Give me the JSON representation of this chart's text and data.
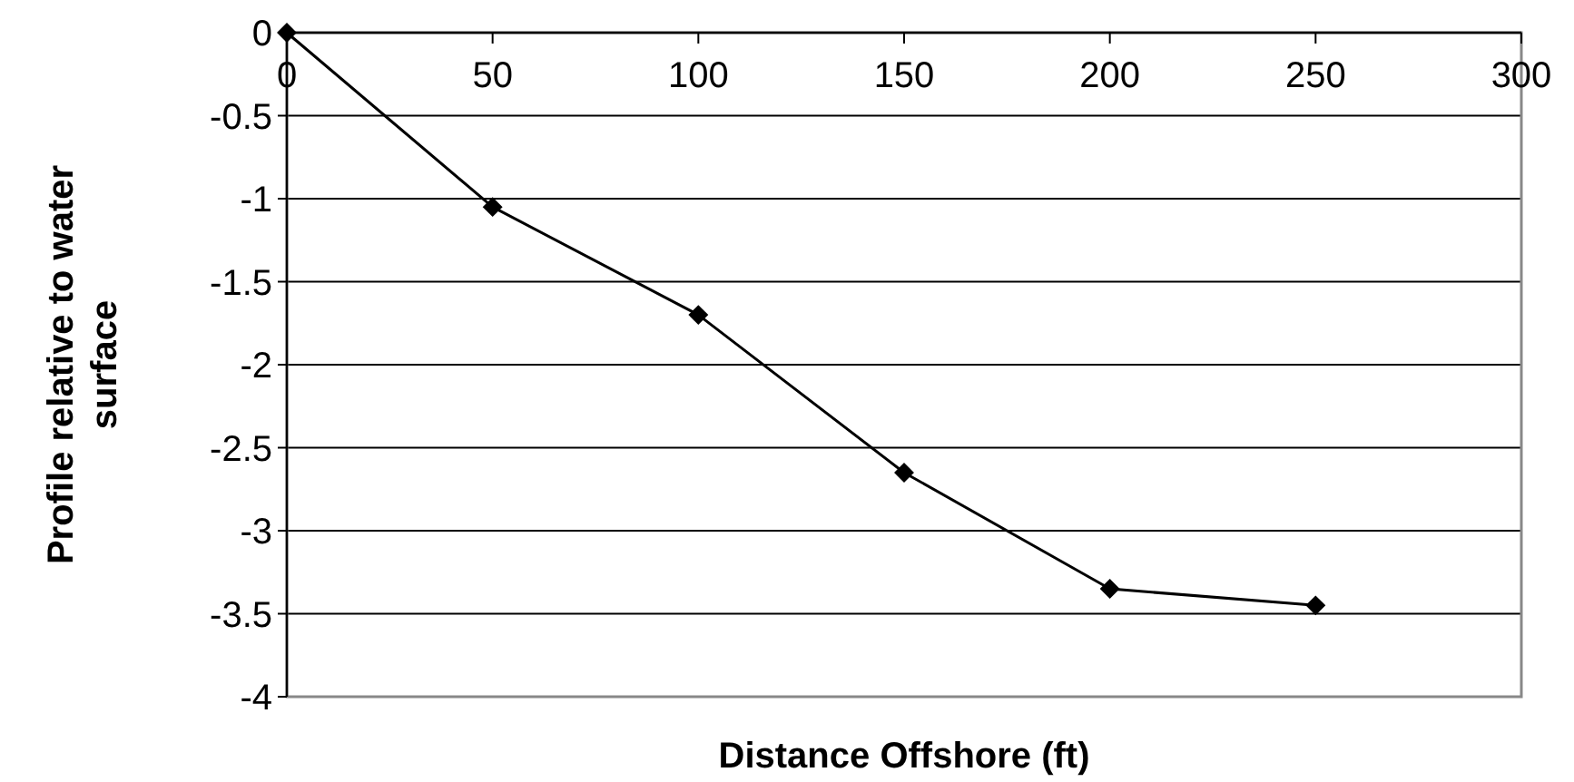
{
  "chart_data": {
    "type": "line",
    "xlabel": "Distance Offshore (ft)",
    "ylabel": "Profile relative to water surface",
    "x": [
      0,
      50,
      100,
      150,
      200,
      250
    ],
    "series": [
      {
        "color": "#000000",
        "values": [
          0,
          -1.05,
          -1.7,
          -2.65,
          -3.35,
          -3.45
        ]
      }
    ],
    "xlim": [
      0,
      300
    ],
    "xticks": [
      0,
      50,
      100,
      150,
      200,
      250,
      300
    ],
    "ylim": [
      -4,
      0
    ],
    "yticks": [
      0,
      -0.5,
      -1,
      -1.5,
      -2,
      -2.5,
      -3,
      -3.5,
      -4
    ],
    "grid": "y",
    "marker": "diamond",
    "line_style": "solid"
  }
}
